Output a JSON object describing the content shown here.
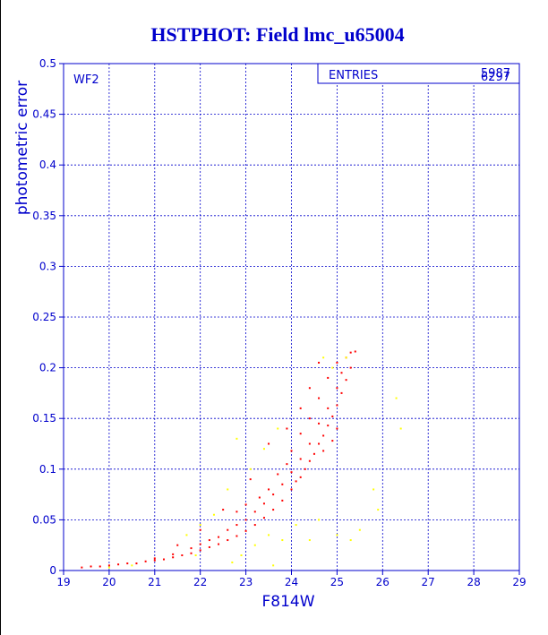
{
  "chart_data": {
    "type": "scatter",
    "title": "HSTPHOT: Field lmc_u65004",
    "x_label": "F814W",
    "y_label": "photometric error",
    "annotation": "WF2",
    "stats": {
      "label": "ENTRIES",
      "values": [
        "5987",
        "6297"
      ]
    },
    "xlim": [
      19,
      29
    ],
    "ylim": [
      0,
      0.5
    ],
    "xticks": [
      19,
      20,
      21,
      22,
      23,
      24,
      25,
      26,
      27,
      28,
      29
    ],
    "yticks": [
      0,
      0.05,
      0.1,
      0.15,
      0.2,
      0.25,
      0.3,
      0.35,
      0.4,
      0.45,
      0.5
    ],
    "grid": true,
    "series": [
      {
        "color": "#ff0000",
        "x": [
          19.4,
          19.6,
          19.8,
          20.0,
          20.2,
          20.4,
          20.6,
          20.8,
          21.0,
          21.0,
          21.2,
          21.4,
          21.4,
          21.6,
          21.8,
          21.8,
          22.0,
          22.0,
          22.2,
          22.2,
          22.4,
          22.4,
          22.6,
          22.6,
          22.8,
          22.8,
          22.8,
          23.0,
          23.0,
          23.0,
          23.2,
          23.2,
          23.3,
          23.4,
          23.4,
          23.5,
          23.6,
          23.6,
          23.7,
          23.8,
          23.8,
          23.9,
          24.0,
          24.0,
          24.0,
          24.1,
          24.2,
          24.2,
          24.2,
          24.3,
          24.4,
          24.4,
          24.4,
          24.5,
          24.6,
          24.6,
          24.6,
          24.7,
          24.8,
          24.8,
          24.8,
          24.9,
          25.0,
          25.0,
          25.0,
          25.1,
          25.1,
          25.2,
          25.2,
          25.3,
          25.3,
          25.4,
          24.6,
          24.4,
          24.2,
          23.5,
          23.1,
          22.5,
          25.0,
          24.9,
          22.0,
          21.5,
          23.9,
          24.7
        ],
        "values": [
          0.003,
          0.004,
          0.004,
          0.005,
          0.006,
          0.007,
          0.007,
          0.009,
          0.01,
          0.012,
          0.011,
          0.013,
          0.016,
          0.015,
          0.017,
          0.022,
          0.02,
          0.026,
          0.023,
          0.03,
          0.026,
          0.033,
          0.03,
          0.04,
          0.034,
          0.045,
          0.058,
          0.039,
          0.05,
          0.065,
          0.045,
          0.058,
          0.072,
          0.052,
          0.066,
          0.08,
          0.06,
          0.075,
          0.095,
          0.069,
          0.085,
          0.105,
          0.08,
          0.097,
          0.118,
          0.088,
          0.092,
          0.11,
          0.135,
          0.1,
          0.108,
          0.125,
          0.15,
          0.115,
          0.125,
          0.145,
          0.17,
          0.133,
          0.143,
          0.16,
          0.19,
          0.152,
          0.163,
          0.18,
          0.205,
          0.175,
          0.195,
          0.188,
          0.21,
          0.2,
          0.215,
          0.216,
          0.205,
          0.18,
          0.16,
          0.125,
          0.09,
          0.06,
          0.14,
          0.128,
          0.04,
          0.025,
          0.14,
          0.118
        ]
      },
      {
        "color": "#ffff00",
        "x": [
          20.5,
          21.7,
          22.0,
          22.3,
          22.7,
          22.9,
          23.2,
          23.5,
          23.8,
          24.1,
          24.4,
          24.6,
          25.0,
          25.3,
          25.8,
          25.9,
          26.3,
          26.4,
          22.8,
          23.1,
          23.4,
          24.9,
          25.2,
          24.7,
          23.6,
          21.9,
          20.0,
          23.7,
          25.5,
          22.6
        ],
        "values": [
          0.005,
          0.035,
          0.045,
          0.055,
          0.008,
          0.015,
          0.025,
          0.035,
          0.03,
          0.045,
          0.03,
          0.05,
          0.035,
          0.03,
          0.08,
          0.06,
          0.17,
          0.14,
          0.13,
          0.1,
          0.12,
          0.2,
          0.21,
          0.21,
          0.005,
          0.015,
          0.003,
          0.14,
          0.04,
          0.08
        ]
      }
    ]
  }
}
